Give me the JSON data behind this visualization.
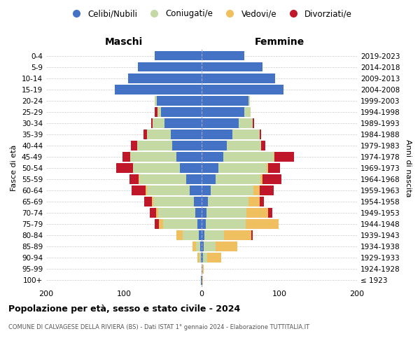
{
  "age_groups": [
    "100+",
    "95-99",
    "90-94",
    "85-89",
    "80-84",
    "75-79",
    "70-74",
    "65-69",
    "60-64",
    "55-59",
    "50-54",
    "45-49",
    "40-44",
    "35-39",
    "30-34",
    "25-29",
    "20-24",
    "15-19",
    "10-14",
    "5-9",
    "0-4"
  ],
  "birth_years": [
    "≤ 1923",
    "1924-1928",
    "1929-1933",
    "1934-1938",
    "1939-1943",
    "1944-1948",
    "1949-1953",
    "1954-1958",
    "1959-1963",
    "1964-1968",
    "1969-1973",
    "1974-1978",
    "1979-1983",
    "1984-1988",
    "1989-1993",
    "1994-1998",
    "1999-2003",
    "2004-2008",
    "2009-2013",
    "2014-2018",
    "2019-2023"
  ],
  "maschi_celibe": [
    1,
    0,
    1,
    2,
    4,
    5,
    8,
    10,
    15,
    20,
    28,
    32,
    38,
    40,
    48,
    52,
    58,
    112,
    95,
    82,
    60
  ],
  "maschi_coniugato": [
    0,
    0,
    2,
    5,
    20,
    45,
    48,
    52,
    55,
    60,
    60,
    60,
    45,
    30,
    15,
    5,
    2,
    0,
    0,
    0,
    0
  ],
  "maschi_vedovo": [
    0,
    0,
    2,
    5,
    8,
    5,
    3,
    2,
    2,
    1,
    0,
    0,
    0,
    0,
    0,
    0,
    0,
    0,
    0,
    0,
    0
  ],
  "maschi_divorziato": [
    0,
    0,
    0,
    0,
    0,
    5,
    8,
    10,
    18,
    12,
    22,
    10,
    8,
    5,
    2,
    3,
    0,
    0,
    0,
    0,
    0
  ],
  "femmine_celibe": [
    1,
    1,
    2,
    3,
    4,
    5,
    6,
    8,
    12,
    18,
    22,
    28,
    32,
    40,
    48,
    55,
    60,
    105,
    95,
    78,
    55
  ],
  "femmine_coniugato": [
    0,
    0,
    5,
    15,
    25,
    52,
    52,
    52,
    55,
    58,
    62,
    65,
    45,
    35,
    18,
    8,
    2,
    0,
    0,
    0,
    0
  ],
  "femmine_vedovo": [
    1,
    2,
    18,
    28,
    35,
    42,
    28,
    15,
    8,
    2,
    2,
    1,
    0,
    0,
    0,
    0,
    0,
    0,
    0,
    0,
    0
  ],
  "femmine_divorziato": [
    0,
    0,
    0,
    0,
    2,
    0,
    5,
    5,
    18,
    25,
    15,
    25,
    5,
    2,
    2,
    0,
    0,
    0,
    0,
    0,
    0
  ],
  "colors": {
    "celibe": "#4472C4",
    "coniugato": "#C5D9A4",
    "vedovo": "#F0C060",
    "divorziato": "#C0182A"
  },
  "title": "Popolazione per età, sesso e stato civile - 2024",
  "subtitle": "COMUNE DI CALVAGESE DELLA RIVIERA (BS) - Dati ISTAT 1° gennaio 2024 - Elaborazione TUTTITALIA.IT",
  "label_maschi": "Maschi",
  "label_femmine": "Femmine",
  "ylabel_left": "Fasce di età",
  "ylabel_right": "Anni di nascita",
  "xlim": 200,
  "legend_labels": [
    "Celibi/Nubili",
    "Coniugati/e",
    "Vedovi/e",
    "Divorziati/e"
  ],
  "background_color": "#ffffff",
  "grid_color": "#cccccc"
}
